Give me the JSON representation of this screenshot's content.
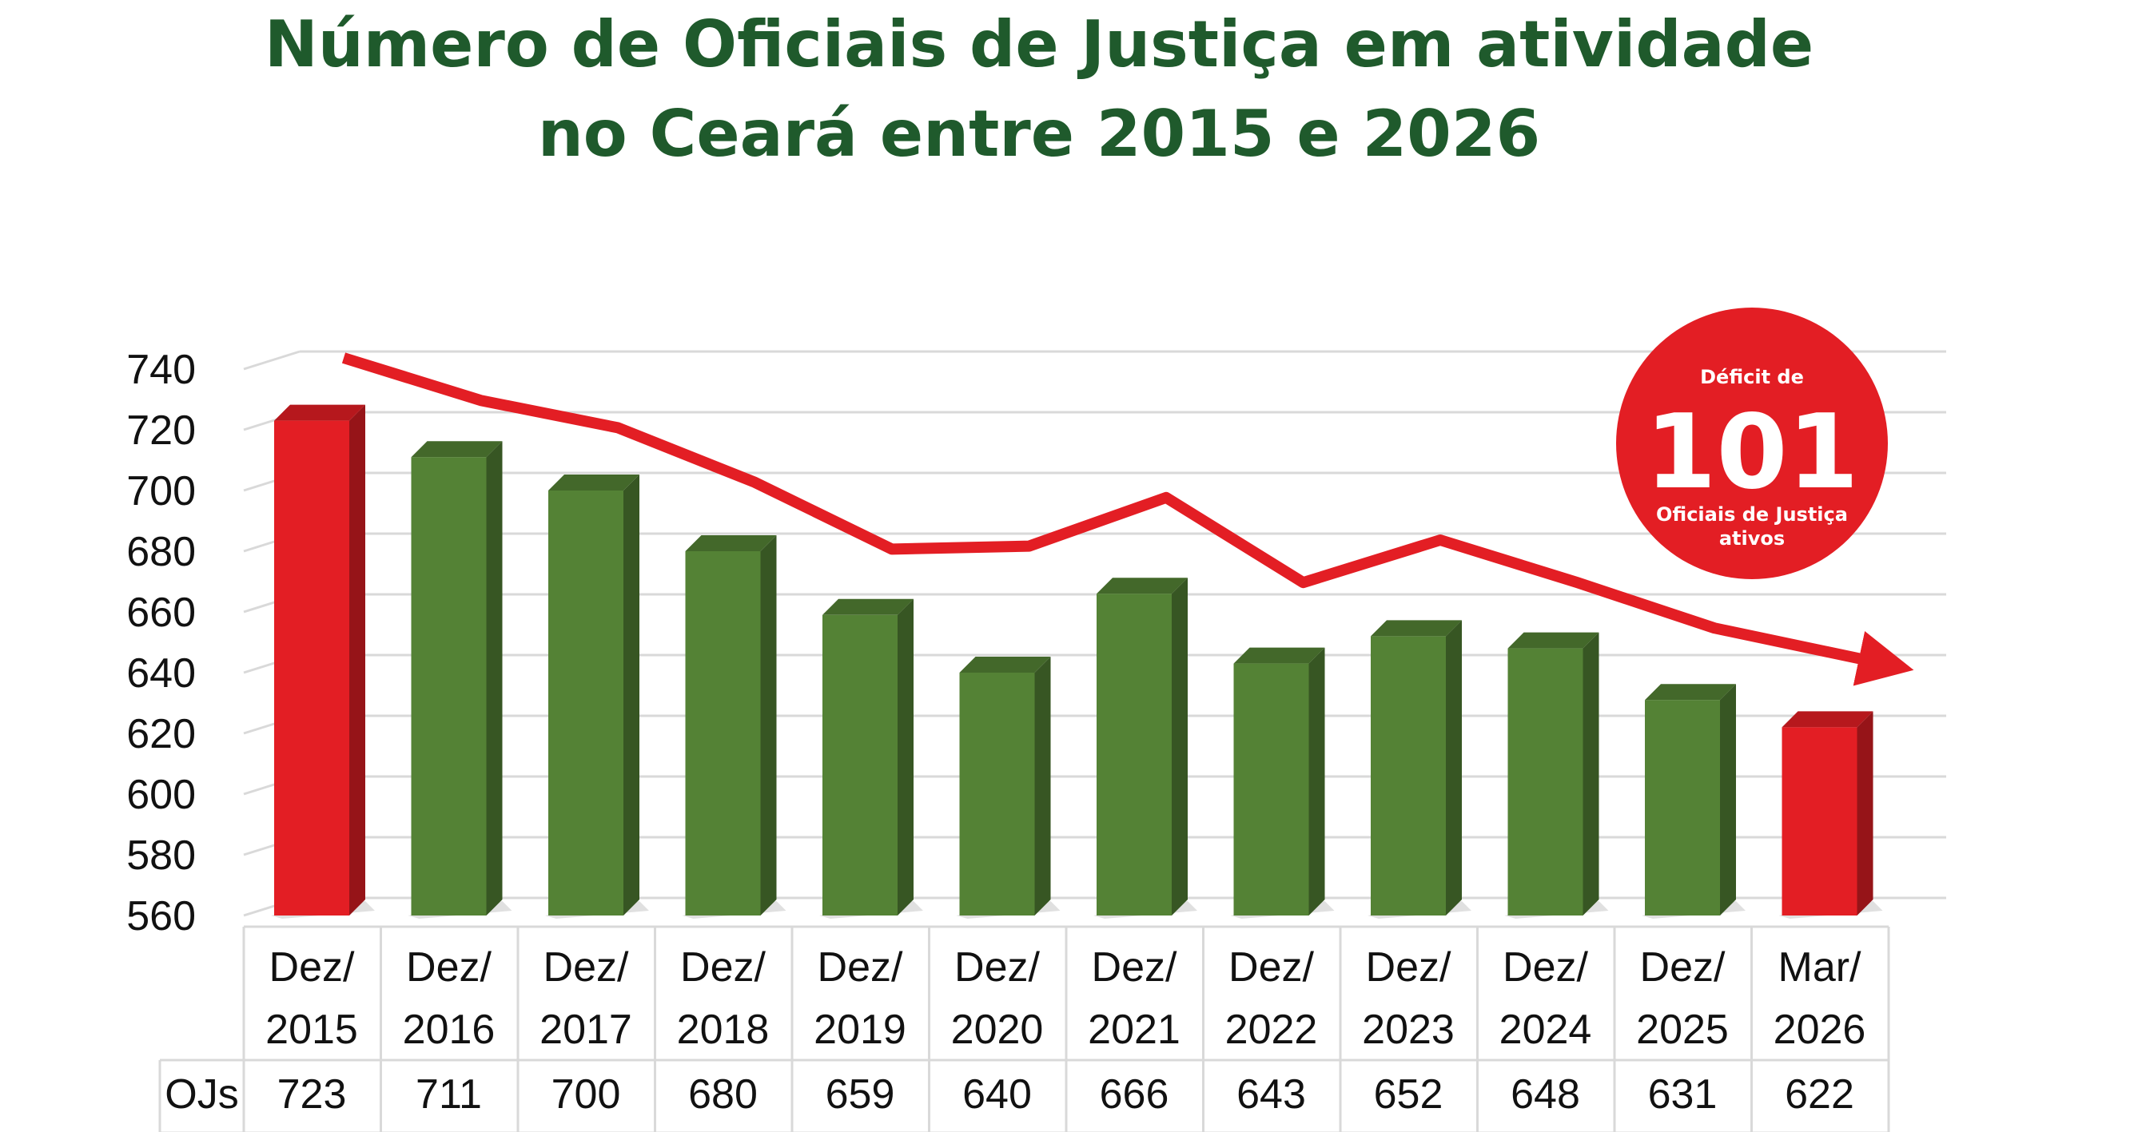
{
  "title_lines": [
    "Número de Oficiais de Justiça em atividade",
    "no Ceará entre 2015 e 2026"
  ],
  "badge": {
    "top": "Déficit de",
    "number": "101",
    "line1": "Oficiais de Justiça",
    "line2": "ativos"
  },
  "colors": {
    "title": "#1f5a2c",
    "green": "#548235",
    "red": "#e31e24",
    "grid": "#d9d9d9"
  },
  "chart_data": {
    "type": "bar",
    "title": "Número de Oficiais de Justiça em atividade no Ceará entre 2015 e 2026",
    "categories": [
      [
        "Dez/",
        "2015"
      ],
      [
        "Dez/",
        "2016"
      ],
      [
        "Dez/",
        "2017"
      ],
      [
        "Dez/",
        "2018"
      ],
      [
        "Dez/",
        "2019"
      ],
      [
        "Dez/",
        "2020"
      ],
      [
        "Dez/",
        "2021"
      ],
      [
        "Dez/",
        "2022"
      ],
      [
        "Dez/",
        "2023"
      ],
      [
        "Dez/",
        "2024"
      ],
      [
        "Dez/",
        "2025"
      ],
      [
        "Mar/",
        "2026"
      ]
    ],
    "series": [
      {
        "name": "OJs",
        "values": [
          723,
          711,
          700,
          680,
          659,
          640,
          666,
          643,
          652,
          648,
          631,
          622
        ]
      }
    ],
    "highlighted": [
      0,
      11
    ],
    "trend_line": [
      740,
      726,
      717,
      699,
      677,
      678,
      694,
      666,
      680,
      666,
      651,
      639
    ],
    "yticks": [
      560,
      580,
      600,
      620,
      640,
      660,
      680,
      700,
      720,
      740
    ],
    "ylim": [
      560,
      740
    ],
    "table_row_label": "OJs",
    "grid": true
  }
}
